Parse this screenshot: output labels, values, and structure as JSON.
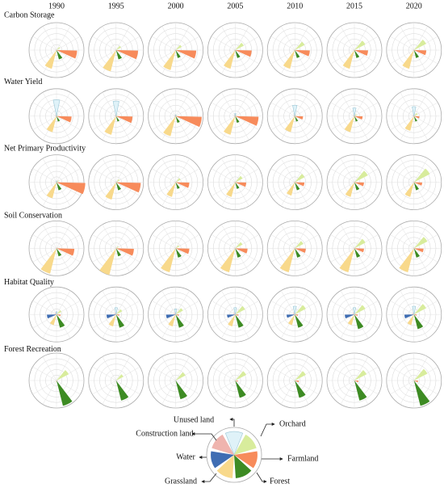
{
  "chart_data": {
    "type": "rose",
    "columns": [
      "1990",
      "1995",
      "2000",
      "2005",
      "2010",
      "2015",
      "2020"
    ],
    "rows": [
      "Carbon Storage",
      "Water Yield",
      "Net Primary Productivity",
      "Soil Conservation",
      "Habitat Quality",
      "Forest Recreation"
    ],
    "categories": [
      "Unused land",
      "Orchard",
      "Farmland",
      "Forest",
      "Grassland",
      "Water",
      "Construction land"
    ],
    "colors": [
      "#dff2f8",
      "#d8ec9c",
      "#f78b5b",
      "#3d8b23",
      "#f8d98b",
      "#3f6db3",
      "#efb4ae"
    ],
    "values": [
      [
        [
          0,
          15,
          75,
          35,
          70,
          2,
          3
        ],
        [
          0,
          20,
          80,
          35,
          80,
          2,
          3
        ],
        [
          0,
          25,
          75,
          30,
          75,
          2,
          3
        ],
        [
          0,
          35,
          60,
          30,
          70,
          2,
          3
        ],
        [
          0,
          40,
          55,
          30,
          70,
          2,
          3
        ],
        [
          0,
          45,
          50,
          30,
          70,
          2,
          3
        ],
        [
          0,
          50,
          45,
          30,
          70,
          2,
          3
        ]
      ],
      [
        [
          60,
          5,
          55,
          20,
          60,
          3,
          5
        ],
        [
          55,
          5,
          60,
          20,
          70,
          3,
          5
        ],
        [
          5,
          5,
          95,
          25,
          75,
          3,
          5
        ],
        [
          10,
          5,
          85,
          25,
          70,
          3,
          5
        ],
        [
          40,
          5,
          30,
          20,
          60,
          3,
          5
        ],
        [
          30,
          10,
          30,
          20,
          60,
          3,
          5
        ],
        [
          35,
          15,
          20,
          20,
          55,
          3,
          5
        ]
      ],
      [
        [
          5,
          10,
          105,
          30,
          60,
          2,
          3
        ],
        [
          0,
          15,
          90,
          30,
          65,
          2,
          3
        ],
        [
          0,
          20,
          50,
          25,
          55,
          2,
          3
        ],
        [
          0,
          30,
          40,
          25,
          55,
          2,
          3
        ],
        [
          0,
          40,
          35,
          30,
          50,
          2,
          3
        ],
        [
          0,
          55,
          35,
          30,
          55,
          2,
          3
        ],
        [
          0,
          65,
          30,
          30,
          55,
          2,
          3
        ]
      ],
      [
        [
          0,
          5,
          65,
          30,
          95,
          2,
          3
        ],
        [
          0,
          10,
          65,
          30,
          100,
          2,
          3
        ],
        [
          0,
          15,
          50,
          35,
          90,
          2,
          3
        ],
        [
          0,
          30,
          45,
          35,
          90,
          2,
          3
        ],
        [
          0,
          35,
          40,
          35,
          90,
          2,
          3
        ],
        [
          0,
          45,
          35,
          35,
          90,
          2,
          3
        ],
        [
          0,
          55,
          35,
          35,
          90,
          2,
          3
        ]
      ],
      [
        [
          10,
          20,
          15,
          50,
          40,
          35,
          8
        ],
        [
          25,
          25,
          12,
          50,
          45,
          35,
          8
        ],
        [
          20,
          30,
          12,
          50,
          45,
          35,
          8
        ],
        [
          25,
          40,
          12,
          50,
          45,
          30,
          8
        ],
        [
          30,
          45,
          12,
          50,
          40,
          30,
          8
        ],
        [
          25,
          45,
          12,
          55,
          40,
          35,
          8
        ],
        [
          30,
          50,
          10,
          55,
          40,
          35,
          8
        ]
      ],
      [
        [
          0,
          50,
          3,
          95,
          5,
          0,
          0
        ],
        [
          0,
          30,
          0,
          75,
          0,
          0,
          0
        ],
        [
          0,
          40,
          0,
          70,
          0,
          0,
          0
        ],
        [
          0,
          45,
          10,
          65,
          0,
          0,
          0
        ],
        [
          0,
          45,
          15,
          65,
          0,
          0,
          0
        ],
        [
          0,
          50,
          15,
          75,
          0,
          0,
          0
        ],
        [
          0,
          55,
          15,
          95,
          0,
          0,
          0
        ]
      ]
    ]
  }
}
